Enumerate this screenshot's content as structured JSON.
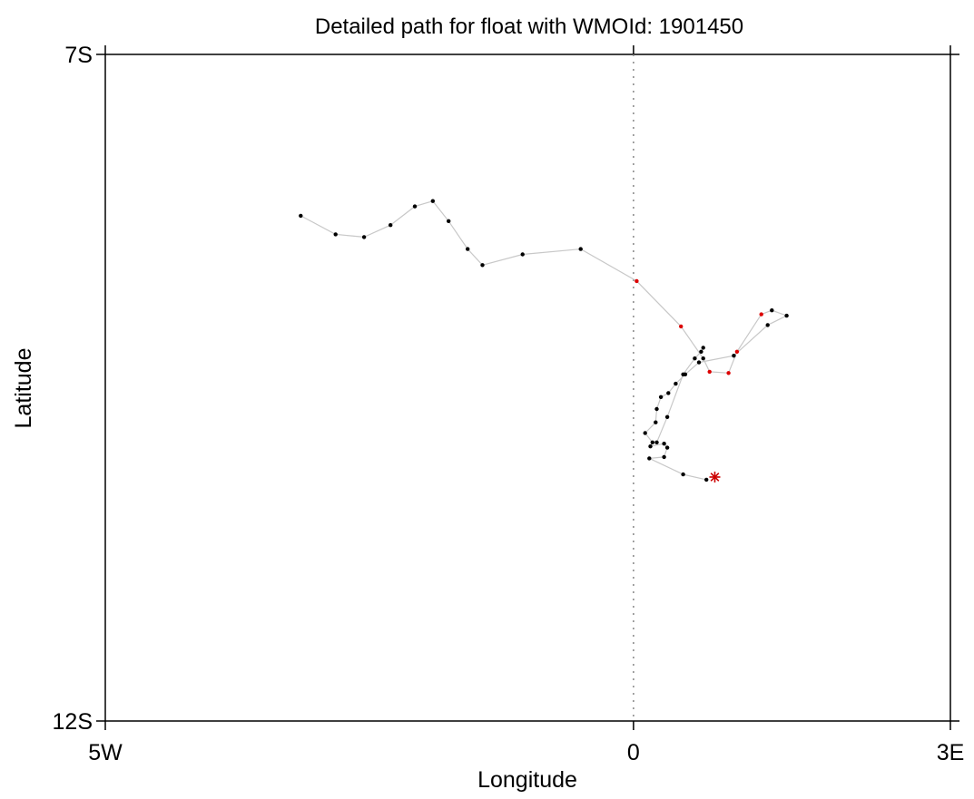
{
  "chart_data": {
    "type": "scatter",
    "title": "Detailed path for float with WMOId: 1901450",
    "xlabel": "Longitude",
    "ylabel": "Latitude",
    "xlim": [
      -5,
      3
    ],
    "ylim": [
      -12,
      -7
    ],
    "x_ticks": [
      {
        "value": -5,
        "label": "5W"
      },
      {
        "value": 0,
        "label": "0"
      },
      {
        "value": 3,
        "label": "3E"
      }
    ],
    "y_ticks": [
      {
        "value": -7,
        "label": "7S"
      },
      {
        "value": -12,
        "label": "12S"
      }
    ],
    "grid": false,
    "reference_line": {
      "axis": "x",
      "value": 0,
      "style": "dotted",
      "color": "#888888"
    },
    "colors": {
      "path": "#c8c8c8",
      "point": "#000000",
      "highlight": "#dd0000",
      "start_marker": "#cc0000"
    },
    "path": [
      {
        "lon": -3.15,
        "lat": -8.21
      },
      {
        "lon": -2.82,
        "lat": -8.35
      },
      {
        "lon": -2.55,
        "lat": -8.37
      },
      {
        "lon": -2.3,
        "lat": -8.28
      },
      {
        "lon": -2.07,
        "lat": -8.14
      },
      {
        "lon": -1.9,
        "lat": -8.1
      },
      {
        "lon": -1.75,
        "lat": -8.25
      },
      {
        "lon": -1.57,
        "lat": -8.46
      },
      {
        "lon": -1.43,
        "lat": -8.58
      },
      {
        "lon": -1.05,
        "lat": -8.5
      },
      {
        "lon": -0.5,
        "lat": -8.46
      },
      {
        "lon": 0.03,
        "lat": -8.7,
        "highlight": true
      },
      {
        "lon": 0.45,
        "lat": -9.04,
        "highlight": true
      },
      {
        "lon": 0.66,
        "lat": -9.28
      },
      {
        "lon": 0.72,
        "lat": -9.38,
        "highlight": true
      },
      {
        "lon": 0.9,
        "lat": -9.39,
        "highlight": true
      },
      {
        "lon": 0.98,
        "lat": -9.23,
        "highlight": true
      },
      {
        "lon": 1.21,
        "lat": -8.95,
        "highlight": true
      },
      {
        "lon": 1.31,
        "lat": -8.92
      },
      {
        "lon": 1.45,
        "lat": -8.96
      },
      {
        "lon": 1.27,
        "lat": -9.03
      },
      {
        "lon": 0.95,
        "lat": -9.26
      },
      {
        "lon": 0.62,
        "lat": -9.31
      },
      {
        "lon": 0.49,
        "lat": -9.4
      },
      {
        "lon": 0.4,
        "lat": -9.47
      },
      {
        "lon": 0.33,
        "lat": -9.54
      },
      {
        "lon": 0.26,
        "lat": -9.57
      },
      {
        "lon": 0.22,
        "lat": -9.66
      },
      {
        "lon": 0.21,
        "lat": -9.76
      },
      {
        "lon": 0.11,
        "lat": -9.84
      },
      {
        "lon": 0.18,
        "lat": -9.91
      },
      {
        "lon": 0.16,
        "lat": -9.94
      },
      {
        "lon": 0.29,
        "lat": -9.92
      },
      {
        "lon": 0.32,
        "lat": -9.95
      },
      {
        "lon": 0.29,
        "lat": -10.02
      },
      {
        "lon": 0.15,
        "lat": -10.03
      },
      {
        "lon": 0.47,
        "lat": -10.15
      },
      {
        "lon": 0.69,
        "lat": -10.19
      }
    ],
    "branch": [
      {
        "lon": 0.66,
        "lat": -9.2
      },
      {
        "lon": 0.64,
        "lat": -9.23
      },
      {
        "lon": 0.58,
        "lat": -9.28
      },
      {
        "lon": 0.47,
        "lat": -9.4
      },
      {
        "lon": 0.32,
        "lat": -9.72
      },
      {
        "lon": 0.22,
        "lat": -9.91
      }
    ],
    "start_marker": {
      "lon": 0.77,
      "lat": -10.17,
      "symbol": "asterisk"
    }
  }
}
